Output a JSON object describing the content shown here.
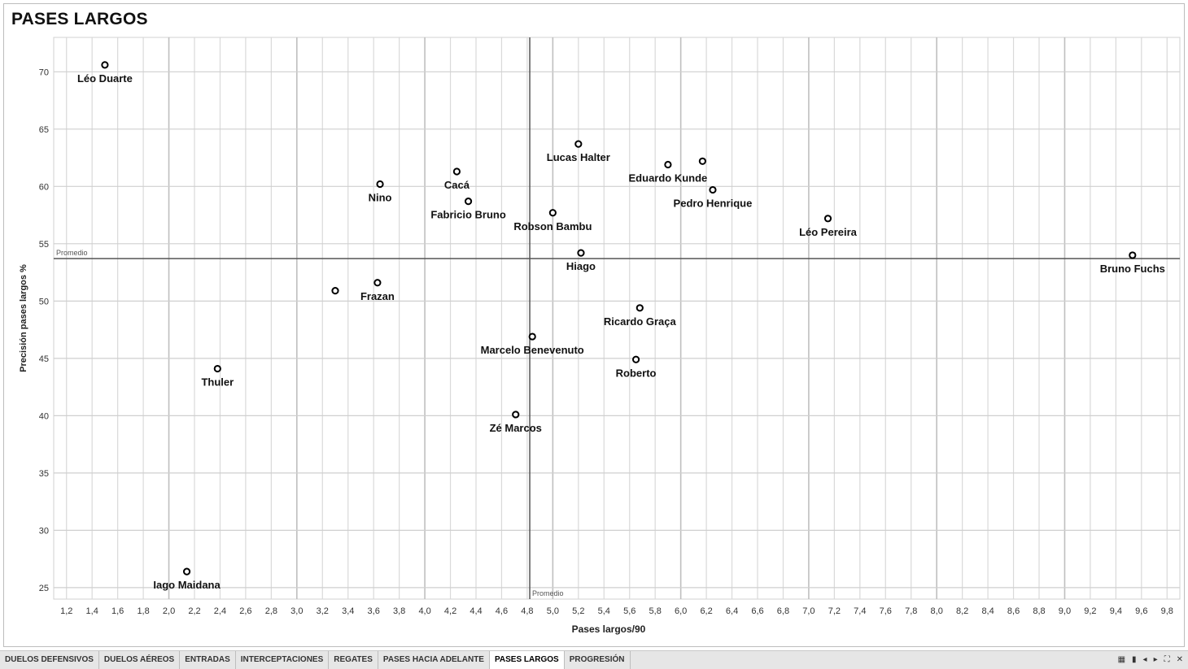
{
  "title": "PASES LARGOS",
  "chart_data": {
    "type": "scatter",
    "xlabel": "Pases largos/90",
    "ylabel": "Precisión pases largos %",
    "xlim": [
      1.1,
      9.9
    ],
    "ylim": [
      24,
      73
    ],
    "xticks": [
      1.2,
      1.4,
      1.6,
      1.8,
      2.0,
      2.2,
      2.4,
      2.6,
      2.8,
      3.0,
      3.2,
      3.4,
      3.6,
      3.8,
      4.0,
      4.2,
      4.4,
      4.6,
      4.8,
      5.0,
      5.2,
      5.4,
      5.6,
      5.8,
      6.0,
      6.2,
      6.4,
      6.6,
      6.8,
      7.0,
      7.2,
      7.4,
      7.6,
      7.8,
      8.0,
      8.2,
      8.4,
      8.6,
      8.8,
      9.0,
      9.2,
      9.4,
      9.6,
      9.8
    ],
    "yticks": [
      25,
      30,
      35,
      40,
      45,
      50,
      55,
      60,
      65,
      70
    ],
    "grid": true,
    "reference_lines": {
      "x": {
        "value": 4.82,
        "label": "Promedio"
      },
      "y": {
        "value": 53.7,
        "label": "Promedio"
      }
    },
    "points": [
      {
        "label": "Léo Duarte",
        "x": 1.5,
        "y": 70.6
      },
      {
        "label": "Lucas Halter",
        "x": 5.2,
        "y": 63.7
      },
      {
        "label": "Eduardo Kunde",
        "x": 5.9,
        "y": 61.9
      },
      {
        "label": "",
        "x": 6.17,
        "y": 62.2
      },
      {
        "label": "Pedro Henrique",
        "x": 6.25,
        "y": 59.7
      },
      {
        "label": "Nino",
        "x": 3.65,
        "y": 60.2
      },
      {
        "label": "Cacá",
        "x": 4.25,
        "y": 61.3
      },
      {
        "label": "Fabricio Bruno",
        "x": 4.34,
        "y": 58.7
      },
      {
        "label": "Robson Bambu",
        "x": 5.0,
        "y": 57.7
      },
      {
        "label": "Léo Pereira",
        "x": 7.15,
        "y": 57.2
      },
      {
        "label": "Hiago",
        "x": 5.22,
        "y": 54.2
      },
      {
        "label": "Bruno Fuchs",
        "x": 9.53,
        "y": 54.0
      },
      {
        "label": "",
        "x": 3.3,
        "y": 50.9
      },
      {
        "label": "Frazan",
        "x": 3.63,
        "y": 51.6
      },
      {
        "label": "Ricardo Graça",
        "x": 5.68,
        "y": 49.4
      },
      {
        "label": "Marcelo Benevenuto",
        "x": 4.84,
        "y": 46.9
      },
      {
        "label": "Roberto",
        "x": 5.65,
        "y": 44.9
      },
      {
        "label": "Thuler",
        "x": 2.38,
        "y": 44.1
      },
      {
        "label": "Zé Marcos",
        "x": 4.71,
        "y": 40.1
      },
      {
        "label": "Iago Maidana",
        "x": 2.14,
        "y": 26.4
      }
    ]
  },
  "tabs": [
    {
      "label": "DUELOS DEFENSIVOS",
      "active": false
    },
    {
      "label": "DUELOS AÉREOS",
      "active": false
    },
    {
      "label": "ENTRADAS",
      "active": false
    },
    {
      "label": "INTERCEPTACIONES",
      "active": false
    },
    {
      "label": "REGATES",
      "active": false
    },
    {
      "label": "PASES HACIA ADELANTE",
      "active": false
    },
    {
      "label": "PASES LARGOS",
      "active": true
    },
    {
      "label": "PROGRESIÓN",
      "active": false
    }
  ],
  "nav_icons": [
    "grid-view-icon",
    "page-icon",
    "first-page-icon",
    "next-page-icon",
    "fullscreen-icon",
    "close-icon"
  ],
  "nav_glyphs": [
    "▦",
    "▮",
    "◂",
    "▸",
    "⛶",
    "✕"
  ]
}
